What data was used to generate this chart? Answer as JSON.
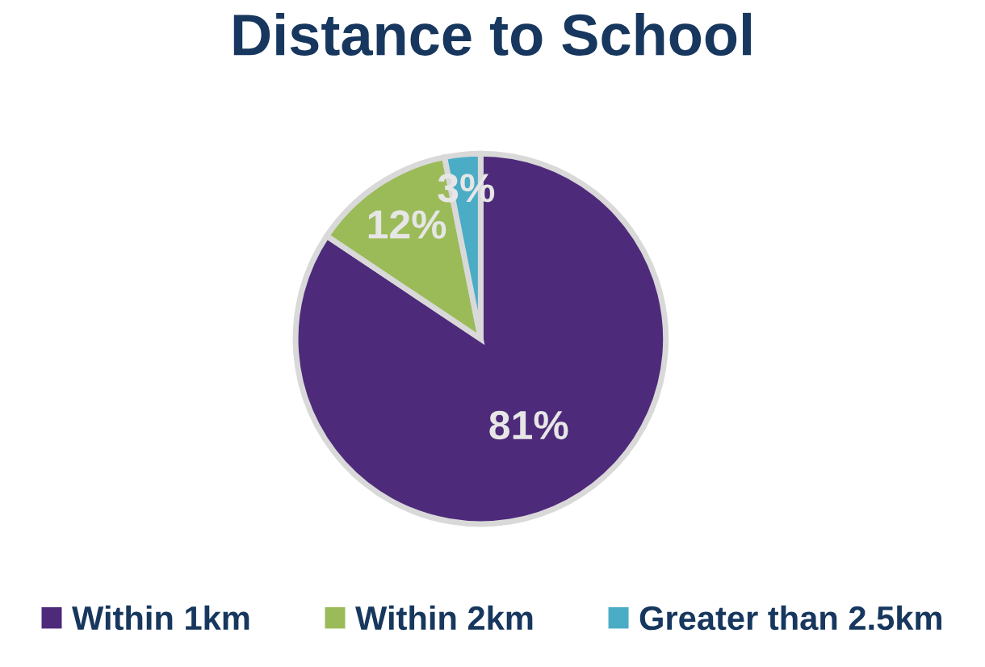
{
  "chart_data": {
    "type": "pie",
    "title": "Distance to School",
    "categories": [
      "Within 1km",
      "Within 2km",
      "Greater than 2.5km"
    ],
    "values": [
      81,
      12,
      3
    ],
    "colors": [
      "#4e2a7a",
      "#9bbb59",
      "#4bacc6"
    ],
    "value_labels": [
      "81%",
      "12%",
      "3%"
    ],
    "legend": "bottom"
  }
}
